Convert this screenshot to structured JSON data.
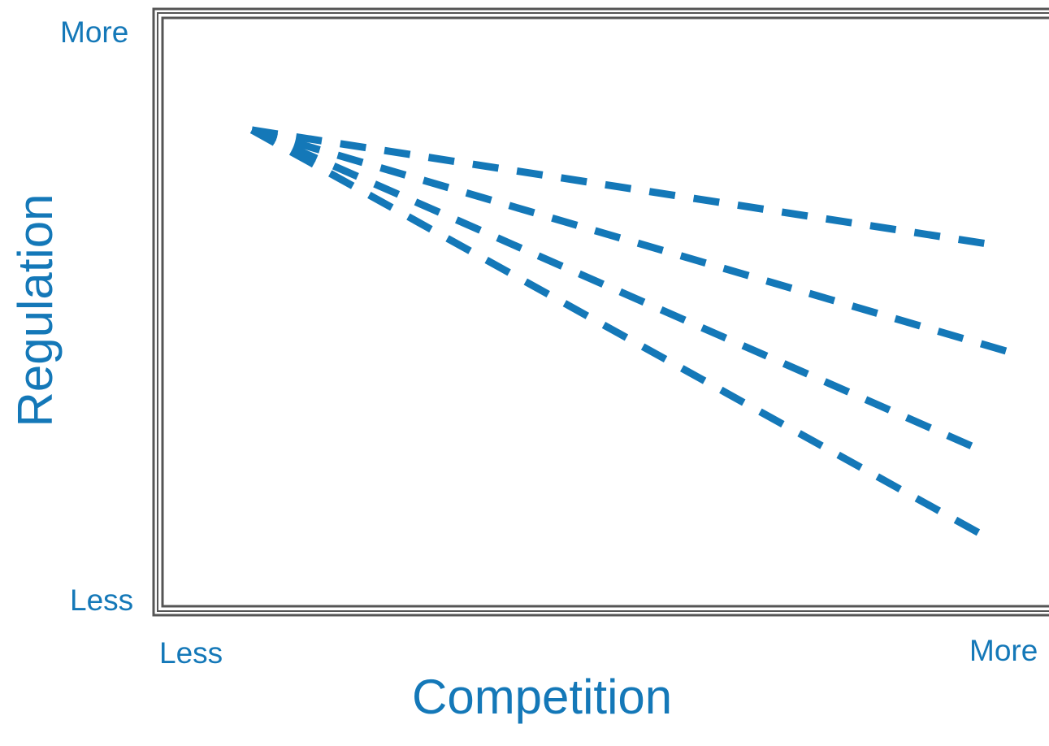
{
  "labels": {
    "y_axis_title": "Regulation",
    "x_axis_title": "Competition",
    "y_top": "More",
    "y_bottom": "Less",
    "x_left": "Less",
    "x_right": "More"
  },
  "colors": {
    "line": "#1478b8",
    "frame": "#555555",
    "text": "#1478b8"
  },
  "diagram": {
    "type": "fan of dashed lines",
    "line_count": 4,
    "line_style": "dashed",
    "frame_style": "double border"
  }
}
